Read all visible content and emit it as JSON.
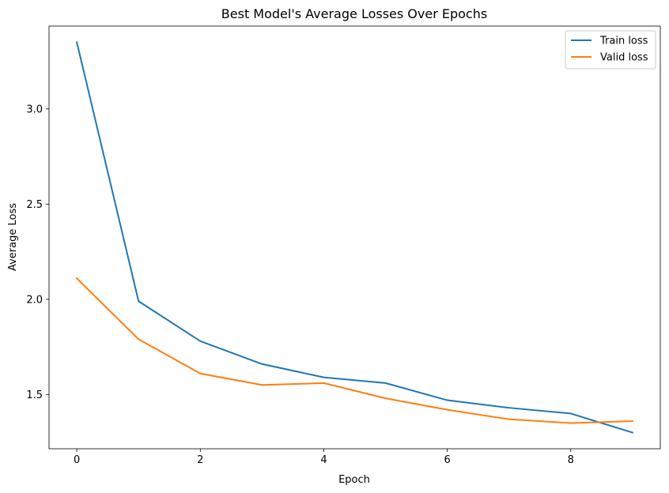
{
  "chart_data": {
    "type": "line",
    "title": "Best Model's Average Losses Over Epochs",
    "xlabel": "Epoch",
    "ylabel": "Average Loss",
    "x": [
      0,
      1,
      2,
      3,
      4,
      5,
      6,
      7,
      8,
      9
    ],
    "xlim": [
      -0.45,
      9.45
    ],
    "ylim": [
      1.215,
      3.435
    ],
    "xticks": [
      0,
      2,
      4,
      6,
      8
    ],
    "yticks": [
      1.5,
      2.0,
      2.5,
      3.0
    ],
    "xtick_labels": [
      "0",
      "2",
      "4",
      "6",
      "8"
    ],
    "ytick_labels": [
      "1.5",
      "2.0",
      "2.5",
      "3.0"
    ],
    "grid": false,
    "legend_position": "top-right",
    "series": [
      {
        "name": "Train loss",
        "color": "#1f77b4",
        "values": [
          3.35,
          1.99,
          1.78,
          1.66,
          1.59,
          1.56,
          1.47,
          1.43,
          1.4,
          1.3
        ]
      },
      {
        "name": "Valid loss",
        "color": "#ff7f0e",
        "values": [
          2.11,
          1.79,
          1.61,
          1.55,
          1.56,
          1.48,
          1.42,
          1.37,
          1.35,
          1.36
        ]
      }
    ]
  }
}
